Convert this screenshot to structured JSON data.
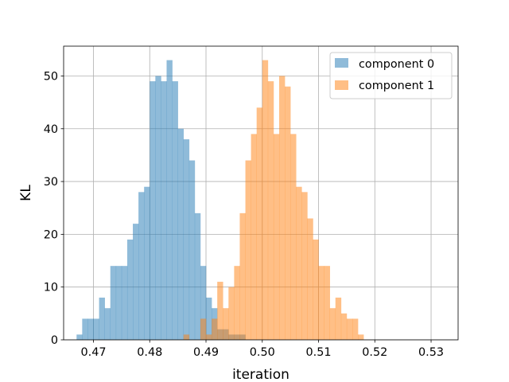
{
  "chart_data": {
    "type": "histogram",
    "title": "",
    "xlabel": "iteration",
    "ylabel": "KL",
    "xlim": [
      0.4647,
      0.5348
    ],
    "ylim": [
      0,
      55.65
    ],
    "xticks": [
      0.47,
      0.48,
      0.49,
      0.5,
      0.51,
      0.52,
      0.53
    ],
    "xtick_labels": [
      "0.47",
      "0.48",
      "0.49",
      "0.50",
      "0.51",
      "0.52",
      "0.53"
    ],
    "yticks": [
      0,
      10,
      20,
      30,
      40,
      50
    ],
    "ytick_labels": [
      "0",
      "10",
      "20",
      "30",
      "40",
      "50"
    ],
    "grid": true,
    "legend_position": "top-right",
    "series": [
      {
        "name": "component 0",
        "color": "#1f77b4",
        "alpha": 0.5,
        "bin_start": 0.467,
        "bin_width": 0.001,
        "counts": [
          1,
          4,
          4,
          4,
          8,
          6,
          14,
          14,
          14,
          19,
          22,
          28,
          29,
          49,
          50,
          49,
          53,
          49,
          40,
          38,
          34,
          24,
          14,
          8,
          6,
          2,
          2,
          1,
          1,
          1
        ]
      },
      {
        "name": "component 1",
        "color": "#ff7f0e",
        "alpha": 0.5,
        "bin_start": 0.486,
        "bin_width": 0.001,
        "counts": [
          1,
          0,
          0,
          4,
          1,
          4,
          11,
          6,
          10,
          14,
          24,
          34,
          39,
          44,
          53,
          49,
          39,
          50,
          48,
          39,
          29,
          28,
          23,
          19,
          14,
          14,
          6,
          8,
          5,
          4,
          4,
          1
        ]
      }
    ]
  }
}
